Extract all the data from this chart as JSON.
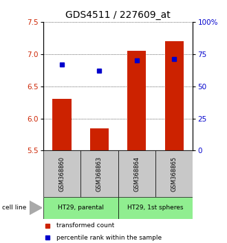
{
  "title": "GDS4511 / 227609_at",
  "samples": [
    "GSM368860",
    "GSM368863",
    "GSM368864",
    "GSM368865"
  ],
  "transformed_counts": [
    6.3,
    5.85,
    7.05,
    7.2
  ],
  "percentile_ranks": [
    67,
    62,
    70,
    71
  ],
  "baseline": 5.5,
  "ylim_left": [
    5.5,
    7.5
  ],
  "ylim_right": [
    0,
    100
  ],
  "yticks_left": [
    5.5,
    6.0,
    6.5,
    7.0,
    7.5
  ],
  "yticks_right": [
    0,
    25,
    50,
    75,
    100
  ],
  "ytick_labels_right": [
    "0",
    "25",
    "50",
    "75",
    "100%"
  ],
  "cell_lines": [
    "HT29, parental",
    "HT29, 1st spheres"
  ],
  "bar_color": "#CC2200",
  "blue_color": "#0000CC",
  "bar_width": 0.5,
  "sample_box_color": "#C8C8C8",
  "green_color": "#90EE90",
  "title_fontsize": 10,
  "tick_fontsize": 7.5,
  "legend_fontsize": 6.5,
  "sample_fontsize": 6.0
}
